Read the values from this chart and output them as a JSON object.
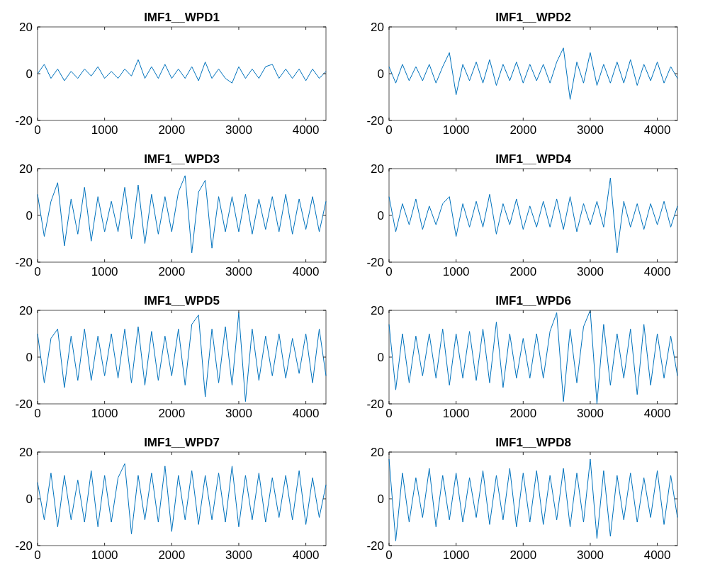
{
  "chart_data": [
    {
      "type": "line",
      "title": "IMF1__WPD1",
      "color": "#0072bd",
      "xlim": [
        0,
        4300
      ],
      "xticks": [
        0,
        1000,
        2000,
        3000,
        4000
      ],
      "ylim": [
        -20,
        20
      ],
      "yticks": [
        -20,
        0,
        20
      ],
      "x": [
        0,
        100,
        200,
        300,
        400,
        500,
        600,
        700,
        800,
        900,
        1000,
        1100,
        1200,
        1300,
        1400,
        1500,
        1600,
        1700,
        1800,
        1900,
        2000,
        2100,
        2200,
        2300,
        2400,
        2500,
        2600,
        2700,
        2800,
        2900,
        3000,
        3100,
        3200,
        3300,
        3400,
        3500,
        3600,
        3700,
        3800,
        3900,
        4000,
        4100,
        4200,
        4300
      ],
      "values": [
        0,
        4,
        -2,
        2,
        -3,
        1,
        -2,
        2,
        -1,
        3,
        -2,
        1,
        -2,
        2,
        -1,
        6,
        -2,
        3,
        -2,
        4,
        -2,
        2,
        -2,
        3,
        -3,
        5,
        -2,
        2,
        -2,
        -4,
        3,
        -2,
        2,
        -2,
        3,
        4,
        -2,
        2,
        -2,
        2,
        -3,
        2,
        -2,
        1
      ]
    },
    {
      "type": "line",
      "title": "IMF1__WPD2",
      "color": "#0072bd",
      "xlim": [
        0,
        4300
      ],
      "xticks": [
        0,
        1000,
        2000,
        3000,
        4000
      ],
      "ylim": [
        -20,
        20
      ],
      "yticks": [
        -20,
        0,
        20
      ],
      "x": [
        0,
        100,
        200,
        300,
        400,
        500,
        600,
        700,
        800,
        900,
        1000,
        1100,
        1200,
        1300,
        1400,
        1500,
        1600,
        1700,
        1800,
        1900,
        2000,
        2100,
        2200,
        2300,
        2400,
        2500,
        2600,
        2700,
        2800,
        2900,
        3000,
        3100,
        3200,
        3300,
        3400,
        3500,
        3600,
        3700,
        3800,
        3900,
        4000,
        4100,
        4200,
        4300
      ],
      "values": [
        3,
        -4,
        4,
        -3,
        3,
        -3,
        4,
        -4,
        3,
        9,
        -9,
        4,
        -3,
        5,
        -4,
        6,
        -5,
        4,
        -3,
        5,
        -4,
        4,
        -3,
        4,
        -4,
        5,
        11,
        -11,
        5,
        -4,
        9,
        -5,
        4,
        -4,
        5,
        -4,
        6,
        -5,
        4,
        -3,
        5,
        -4,
        3,
        -2
      ]
    },
    {
      "type": "line",
      "title": "IMF1__WPD3",
      "color": "#0072bd",
      "xlim": [
        0,
        4300
      ],
      "xticks": [
        0,
        1000,
        2000,
        3000,
        4000
      ],
      "ylim": [
        -20,
        20
      ],
      "yticks": [
        -20,
        0,
        20
      ],
      "x": [
        0,
        100,
        200,
        300,
        400,
        500,
        600,
        700,
        800,
        900,
        1000,
        1100,
        1200,
        1300,
        1400,
        1500,
        1600,
        1700,
        1800,
        1900,
        2000,
        2100,
        2200,
        2300,
        2400,
        2500,
        2600,
        2700,
        2800,
        2900,
        3000,
        3100,
        3200,
        3300,
        3400,
        3500,
        3600,
        3700,
        3800,
        3900,
        4000,
        4100,
        4200,
        4300
      ],
      "values": [
        9,
        -9,
        6,
        14,
        -13,
        7,
        -8,
        12,
        -11,
        8,
        -7,
        6,
        -7,
        12,
        -10,
        13,
        -12,
        9,
        -8,
        8,
        -7,
        10,
        17,
        -16,
        10,
        15,
        -14,
        8,
        -7,
        8,
        -7,
        9,
        -8,
        7,
        -6,
        8,
        -7,
        9,
        -8,
        7,
        -6,
        8,
        -7,
        6
      ]
    },
    {
      "type": "line",
      "title": "IMF1__WPD4",
      "color": "#0072bd",
      "xlim": [
        0,
        4300
      ],
      "xticks": [
        0,
        1000,
        2000,
        3000,
        4000
      ],
      "ylim": [
        -20,
        20
      ],
      "yticks": [
        -20,
        0,
        20
      ],
      "x": [
        0,
        100,
        200,
        300,
        400,
        500,
        600,
        700,
        800,
        900,
        1000,
        1100,
        1200,
        1300,
        1400,
        1500,
        1600,
        1700,
        1800,
        1900,
        2000,
        2100,
        2200,
        2300,
        2400,
        2500,
        2600,
        2700,
        2800,
        2900,
        3000,
        3100,
        3200,
        3300,
        3400,
        3500,
        3600,
        3700,
        3800,
        3900,
        4000,
        4100,
        4200,
        4300
      ],
      "values": [
        8,
        -7,
        5,
        -4,
        7,
        -6,
        4,
        -4,
        5,
        8,
        -9,
        5,
        -5,
        6,
        -5,
        9,
        -8,
        5,
        -4,
        7,
        -6,
        4,
        -5,
        6,
        -5,
        7,
        -6,
        8,
        -7,
        5,
        -4,
        6,
        -5,
        16,
        -16,
        6,
        -5,
        5,
        -6,
        5,
        -4,
        6,
        -5,
        4
      ]
    },
    {
      "type": "line",
      "title": "IMF1__WPD5",
      "color": "#0072bd",
      "xlim": [
        0,
        4300
      ],
      "xticks": [
        0,
        1000,
        2000,
        3000,
        4000
      ],
      "ylim": [
        -20,
        20
      ],
      "yticks": [
        -20,
        0,
        20
      ],
      "x": [
        0,
        100,
        200,
        300,
        400,
        500,
        600,
        700,
        800,
        900,
        1000,
        1100,
        1200,
        1300,
        1400,
        1500,
        1600,
        1700,
        1800,
        1900,
        2000,
        2100,
        2200,
        2300,
        2400,
        2500,
        2600,
        2700,
        2800,
        2900,
        3000,
        3100,
        3200,
        3300,
        3400,
        3500,
        3600,
        3700,
        3800,
        3900,
        4000,
        4100,
        4200,
        4300
      ],
      "values": [
        10,
        -11,
        8,
        12,
        -13,
        9,
        -10,
        12,
        -10,
        9,
        -8,
        10,
        -9,
        12,
        -11,
        13,
        -12,
        11,
        -10,
        9,
        -8,
        12,
        -12,
        14,
        18,
        -17,
        12,
        -11,
        13,
        -12,
        19,
        -19,
        12,
        -10,
        9,
        -8,
        10,
        -9,
        8,
        -7,
        10,
        -11,
        12,
        -8
      ]
    },
    {
      "type": "line",
      "title": "IMF1__WPD6",
      "color": "#0072bd",
      "xlim": [
        0,
        4300
      ],
      "xticks": [
        0,
        1000,
        2000,
        3000,
        4000
      ],
      "ylim": [
        -20,
        20
      ],
      "yticks": [
        -20,
        0,
        20
      ],
      "x": [
        0,
        100,
        200,
        300,
        400,
        500,
        600,
        700,
        800,
        900,
        1000,
        1100,
        1200,
        1300,
        1400,
        1500,
        1600,
        1700,
        1800,
        1900,
        2000,
        2100,
        2200,
        2300,
        2400,
        2500,
        2600,
        2700,
        2800,
        2900,
        3000,
        3100,
        3200,
        3300,
        3400,
        3500,
        3600,
        3700,
        3800,
        3900,
        4000,
        4100,
        4200,
        4300
      ],
      "values": [
        14,
        -14,
        10,
        -11,
        9,
        -8,
        10,
        -9,
        12,
        -12,
        10,
        -9,
        11,
        -10,
        12,
        -11,
        15,
        -13,
        10,
        -9,
        8,
        -9,
        10,
        -9,
        11,
        19,
        -19,
        12,
        -11,
        13,
        20,
        -20,
        14,
        -12,
        10,
        -9,
        12,
        -16,
        14,
        -12,
        10,
        -9,
        9,
        -8
      ]
    },
    {
      "type": "line",
      "title": "IMF1__WPD7",
      "color": "#0072bd",
      "xlim": [
        0,
        4300
      ],
      "xticks": [
        0,
        1000,
        2000,
        3000,
        4000
      ],
      "ylim": [
        -20,
        20
      ],
      "yticks": [
        -20,
        0,
        20
      ],
      "x": [
        0,
        100,
        200,
        300,
        400,
        500,
        600,
        700,
        800,
        900,
        1000,
        1100,
        1200,
        1300,
        1400,
        1500,
        1600,
        1700,
        1800,
        1900,
        2000,
        2100,
        2200,
        2300,
        2400,
        2500,
        2600,
        2700,
        2800,
        2900,
        3000,
        3100,
        3200,
        3300,
        3400,
        3500,
        3600,
        3700,
        3800,
        3900,
        4000,
        4100,
        4200,
        4300
      ],
      "values": [
        7,
        -9,
        11,
        -12,
        10,
        -9,
        8,
        -10,
        12,
        -12,
        10,
        -10,
        9,
        15,
        -15,
        10,
        -9,
        11,
        -10,
        14,
        -14,
        10,
        -9,
        12,
        -11,
        10,
        -9,
        11,
        -10,
        14,
        -12,
        10,
        -9,
        11,
        -10,
        9,
        -8,
        10,
        -9,
        12,
        -11,
        9,
        -8,
        6
      ]
    },
    {
      "type": "line",
      "title": "IMF1__WPD8",
      "color": "#0072bd",
      "xlim": [
        0,
        4300
      ],
      "xticks": [
        0,
        1000,
        2000,
        3000,
        4000
      ],
      "ylim": [
        -20,
        20
      ],
      "yticks": [
        -20,
        0,
        20
      ],
      "x": [
        0,
        100,
        200,
        300,
        400,
        500,
        600,
        700,
        800,
        900,
        1000,
        1100,
        1200,
        1300,
        1400,
        1500,
        1600,
        1700,
        1800,
        1900,
        2000,
        2100,
        2200,
        2300,
        2400,
        2500,
        2600,
        2700,
        2800,
        2900,
        3000,
        3100,
        3200,
        3300,
        3400,
        3500,
        3600,
        3700,
        3800,
        3900,
        4000,
        4100,
        4200,
        4300
      ],
      "values": [
        17,
        -18,
        11,
        -10,
        9,
        -8,
        13,
        -12,
        10,
        -9,
        11,
        -10,
        9,
        -8,
        12,
        -11,
        10,
        -9,
        13,
        -12,
        11,
        -10,
        12,
        -11,
        10,
        -9,
        13,
        -12,
        11,
        -10,
        17,
        -17,
        12,
        -16,
        10,
        -9,
        11,
        -10,
        9,
        -8,
        12,
        -11,
        10,
        -8
      ]
    }
  ]
}
